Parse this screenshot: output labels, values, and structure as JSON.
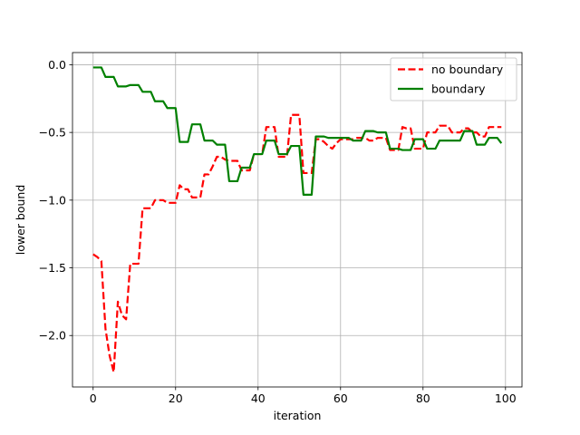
{
  "chart_data": {
    "type": "line",
    "xlabel": "iteration",
    "ylabel": "lower bound",
    "xlim": [
      -5,
      104
    ],
    "ylim": [
      -2.38,
      0.09
    ],
    "xticks": [
      0,
      20,
      40,
      60,
      80,
      100
    ],
    "yticks": [
      0.0,
      -0.5,
      -1.0,
      -1.5,
      -2.0
    ],
    "ytick_labels": [
      "0.0",
      "−0.5",
      "−1.0",
      "−1.5",
      "−2.0"
    ],
    "grid": true,
    "legend_position": "top-right",
    "series": [
      {
        "name": "no boundary",
        "color": "#ff0000",
        "style": "dashed",
        "points": [
          [
            0,
            -1.4
          ],
          [
            1,
            -1.42
          ],
          [
            2,
            -1.45
          ],
          [
            3,
            -1.95
          ],
          [
            4,
            -2.15
          ],
          [
            5,
            -2.27
          ],
          [
            6,
            -1.75
          ],
          [
            7,
            -1.85
          ],
          [
            8,
            -1.88
          ],
          [
            9,
            -1.47
          ],
          [
            10,
            -1.47
          ],
          [
            11,
            -1.47
          ],
          [
            12,
            -1.06
          ],
          [
            13,
            -1.06
          ],
          [
            14,
            -1.06
          ],
          [
            15,
            -1.0
          ],
          [
            16,
            -1.0
          ],
          [
            17,
            -1.0
          ],
          [
            18,
            -1.02
          ],
          [
            19,
            -1.02
          ],
          [
            20,
            -1.02
          ],
          [
            21,
            -0.89
          ],
          [
            22,
            -0.92
          ],
          [
            23,
            -0.92
          ],
          [
            24,
            -0.98
          ],
          [
            25,
            -0.98
          ],
          [
            26,
            -0.98
          ],
          [
            27,
            -0.81
          ],
          [
            28,
            -0.81
          ],
          [
            29,
            -0.75
          ],
          [
            30,
            -0.68
          ],
          [
            31,
            -0.68
          ],
          [
            32,
            -0.7
          ],
          [
            33,
            -0.71
          ],
          [
            34,
            -0.71
          ],
          [
            35,
            -0.71
          ],
          [
            36,
            -0.78
          ],
          [
            37,
            -0.78
          ],
          [
            38,
            -0.78
          ],
          [
            39,
            -0.66
          ],
          [
            40,
            -0.66
          ],
          [
            41,
            -0.66
          ],
          [
            42,
            -0.46
          ],
          [
            43,
            -0.46
          ],
          [
            44,
            -0.46
          ],
          [
            45,
            -0.68
          ],
          [
            46,
            -0.68
          ],
          [
            47,
            -0.68
          ],
          [
            48,
            -0.37
          ],
          [
            49,
            -0.37
          ],
          [
            50,
            -0.37
          ],
          [
            51,
            -0.8
          ],
          [
            52,
            -0.8
          ],
          [
            53,
            -0.8
          ],
          [
            54,
            -0.55
          ],
          [
            55,
            -0.55
          ],
          [
            56,
            -0.57
          ],
          [
            57,
            -0.6
          ],
          [
            58,
            -0.62
          ],
          [
            59,
            -0.58
          ],
          [
            60,
            -0.55
          ],
          [
            61,
            -0.55
          ],
          [
            62,
            -0.55
          ],
          [
            63,
            -0.55
          ],
          [
            64,
            -0.54
          ],
          [
            65,
            -0.54
          ],
          [
            66,
            -0.54
          ],
          [
            67,
            -0.56
          ],
          [
            68,
            -0.56
          ],
          [
            69,
            -0.54
          ],
          [
            70,
            -0.54
          ],
          [
            71,
            -0.54
          ],
          [
            72,
            -0.63
          ],
          [
            73,
            -0.63
          ],
          [
            74,
            -0.63
          ],
          [
            75,
            -0.46
          ],
          [
            76,
            -0.47
          ],
          [
            77,
            -0.47
          ],
          [
            78,
            -0.62
          ],
          [
            79,
            -0.62
          ],
          [
            80,
            -0.62
          ],
          [
            81,
            -0.5
          ],
          [
            82,
            -0.5
          ],
          [
            83,
            -0.5
          ],
          [
            84,
            -0.45
          ],
          [
            85,
            -0.45
          ],
          [
            86,
            -0.45
          ],
          [
            87,
            -0.5
          ],
          [
            88,
            -0.5
          ],
          [
            89,
            -0.5
          ],
          [
            90,
            -0.47
          ],
          [
            91,
            -0.47
          ],
          [
            92,
            -0.5
          ],
          [
            93,
            -0.5
          ],
          [
            94,
            -0.53
          ],
          [
            95,
            -0.53
          ],
          [
            96,
            -0.46
          ],
          [
            97,
            -0.46
          ],
          [
            98,
            -0.46
          ],
          [
            99,
            -0.46
          ]
        ]
      },
      {
        "name": "boundary",
        "color": "#008000",
        "style": "solid",
        "points": [
          [
            0,
            -0.02
          ],
          [
            1,
            -0.02
          ],
          [
            2,
            -0.02
          ],
          [
            3,
            -0.09
          ],
          [
            4,
            -0.09
          ],
          [
            5,
            -0.09
          ],
          [
            6,
            -0.16
          ],
          [
            7,
            -0.16
          ],
          [
            8,
            -0.16
          ],
          [
            9,
            -0.15
          ],
          [
            10,
            -0.15
          ],
          [
            11,
            -0.15
          ],
          [
            12,
            -0.2
          ],
          [
            13,
            -0.2
          ],
          [
            14,
            -0.2
          ],
          [
            15,
            -0.27
          ],
          [
            16,
            -0.27
          ],
          [
            17,
            -0.27
          ],
          [
            18,
            -0.32
          ],
          [
            19,
            -0.32
          ],
          [
            20,
            -0.32
          ],
          [
            21,
            -0.57
          ],
          [
            22,
            -0.57
          ],
          [
            23,
            -0.57
          ],
          [
            24,
            -0.44
          ],
          [
            25,
            -0.44
          ],
          [
            26,
            -0.44
          ],
          [
            27,
            -0.56
          ],
          [
            28,
            -0.56
          ],
          [
            29,
            -0.56
          ],
          [
            30,
            -0.59
          ],
          [
            31,
            -0.59
          ],
          [
            32,
            -0.59
          ],
          [
            33,
            -0.86
          ],
          [
            34,
            -0.86
          ],
          [
            35,
            -0.86
          ],
          [
            36,
            -0.76
          ],
          [
            37,
            -0.76
          ],
          [
            38,
            -0.76
          ],
          [
            39,
            -0.66
          ],
          [
            40,
            -0.66
          ],
          [
            41,
            -0.66
          ],
          [
            42,
            -0.56
          ],
          [
            43,
            -0.56
          ],
          [
            44,
            -0.56
          ],
          [
            45,
            -0.66
          ],
          [
            46,
            -0.66
          ],
          [
            47,
            -0.66
          ],
          [
            48,
            -0.6
          ],
          [
            49,
            -0.6
          ],
          [
            50,
            -0.6
          ],
          [
            51,
            -0.96
          ],
          [
            52,
            -0.96
          ],
          [
            53,
            -0.96
          ],
          [
            54,
            -0.53
          ],
          [
            55,
            -0.53
          ],
          [
            56,
            -0.53
          ],
          [
            57,
            -0.54
          ],
          [
            58,
            -0.54
          ],
          [
            59,
            -0.54
          ],
          [
            60,
            -0.54
          ],
          [
            61,
            -0.54
          ],
          [
            62,
            -0.54
          ],
          [
            63,
            -0.56
          ],
          [
            64,
            -0.56
          ],
          [
            65,
            -0.56
          ],
          [
            66,
            -0.49
          ],
          [
            67,
            -0.49
          ],
          [
            68,
            -0.49
          ],
          [
            69,
            -0.5
          ],
          [
            70,
            -0.5
          ],
          [
            71,
            -0.5
          ],
          [
            72,
            -0.62
          ],
          [
            73,
            -0.62
          ],
          [
            74,
            -0.62
          ],
          [
            75,
            -0.63
          ],
          [
            76,
            -0.63
          ],
          [
            77,
            -0.63
          ],
          [
            78,
            -0.55
          ],
          [
            79,
            -0.55
          ],
          [
            80,
            -0.55
          ],
          [
            81,
            -0.62
          ],
          [
            82,
            -0.62
          ],
          [
            83,
            -0.62
          ],
          [
            84,
            -0.56
          ],
          [
            85,
            -0.56
          ],
          [
            86,
            -0.56
          ],
          [
            87,
            -0.56
          ],
          [
            88,
            -0.56
          ],
          [
            89,
            -0.56
          ],
          [
            90,
            -0.49
          ],
          [
            91,
            -0.49
          ],
          [
            92,
            -0.49
          ],
          [
            93,
            -0.59
          ],
          [
            94,
            -0.59
          ],
          [
            95,
            -0.59
          ],
          [
            96,
            -0.54
          ],
          [
            97,
            -0.54
          ],
          [
            98,
            -0.54
          ],
          [
            99,
            -0.58
          ]
        ]
      }
    ]
  }
}
